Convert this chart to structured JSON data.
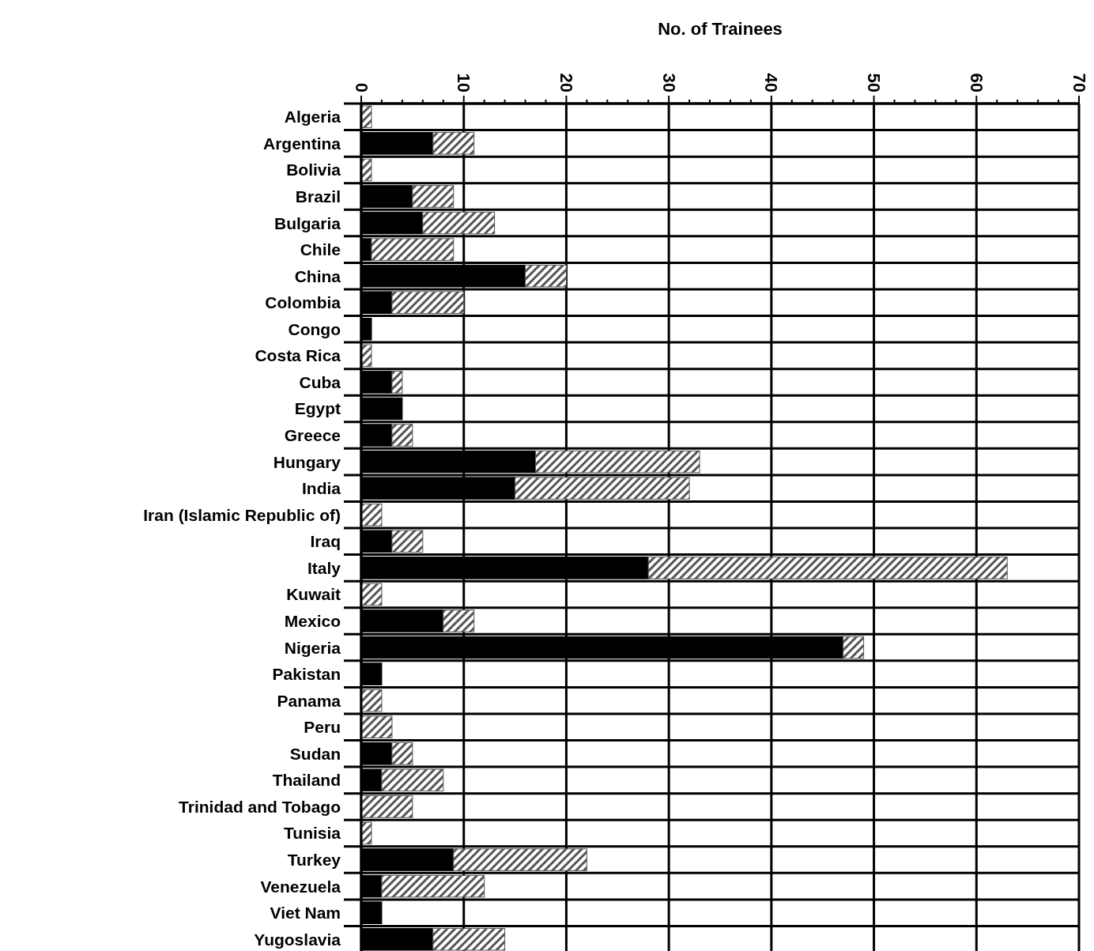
{
  "chart_data": {
    "type": "bar",
    "orientation": "horizontal",
    "stacked": true,
    "xlabel": "No. of Trainees",
    "categories": [
      "Algeria",
      "Argentina",
      "Bolivia",
      "Brazil",
      "Bulgaria",
      "Chile",
      "China",
      "Colombia",
      "Congo",
      "Costa Rica",
      "Cuba",
      "Egypt",
      "Greece",
      "Hungary",
      "India",
      "Iran (Islamic Republic of)",
      "Iraq",
      "Italy",
      "Kuwait",
      "Mexico",
      "Nigeria",
      "Pakistan",
      "Panama",
      "Peru",
      "Sudan",
      "Thailand",
      "Trinidad and Tobago",
      "Tunisia",
      "Turkey",
      "Venezuela",
      "Viet Nam",
      "Yugoslavia"
    ],
    "series": [
      {
        "color": "#000000",
        "values": [
          0,
          7,
          0,
          5,
          6,
          1,
          16,
          3,
          1,
          0,
          3,
          4,
          3,
          17,
          15,
          0,
          3,
          28,
          0,
          8,
          47,
          2,
          0,
          0,
          3,
          2,
          0,
          0,
          9,
          2,
          2,
          7
        ]
      },
      {
        "color": "#555555",
        "values": [
          1,
          4,
          1,
          4,
          7,
          8,
          4,
          7,
          0,
          1,
          1,
          0,
          2,
          16,
          17,
          2,
          3,
          35,
          2,
          3,
          2,
          0,
          2,
          3,
          2,
          6,
          5,
          1,
          13,
          10,
          0,
          7
        ]
      }
    ],
    "xlim": [
      0,
      70
    ],
    "xticks": [
      0,
      {
        "value": 2,
        "label": null
      },
      {
        "value": 4,
        "label": null
      },
      {
        "value": 6,
        "label": null
      },
      {
        "value": 8,
        "label": null
      },
      10,
      {
        "value": 12,
        "label": null
      },
      {
        "value": 14,
        "label": null
      },
      {
        "value": 16,
        "label": null
      },
      {
        "value": 18,
        "label": null
      },
      20,
      {
        "value": 22,
        "label": null
      },
      {
        "value": 24,
        "label": null
      },
      {
        "value": 26,
        "label": null
      },
      {
        "value": 28,
        "label": null
      },
      30,
      {
        "value": 32,
        "label": null
      },
      {
        "value": 34,
        "label": null
      },
      {
        "value": 36,
        "label": null
      },
      {
        "value": 38,
        "label": null
      },
      40,
      {
        "value": 42,
        "label": null
      },
      {
        "value": 44,
        "label": null
      },
      {
        "value": 46,
        "label": null
      },
      {
        "value": 48,
        "label": null
      },
      50,
      {
        "value": 52,
        "label": null
      },
      {
        "value": 54,
        "label": null
      },
      {
        "value": 56,
        "label": null
      },
      {
        "value": 58,
        "label": null
      },
      60,
      {
        "value": 62,
        "label": null
      },
      {
        "value": 64,
        "label": null
      },
      {
        "value": 66,
        "label": null
      },
      {
        "value": 68,
        "label": null
      },
      70
    ],
    "grid": true
  }
}
